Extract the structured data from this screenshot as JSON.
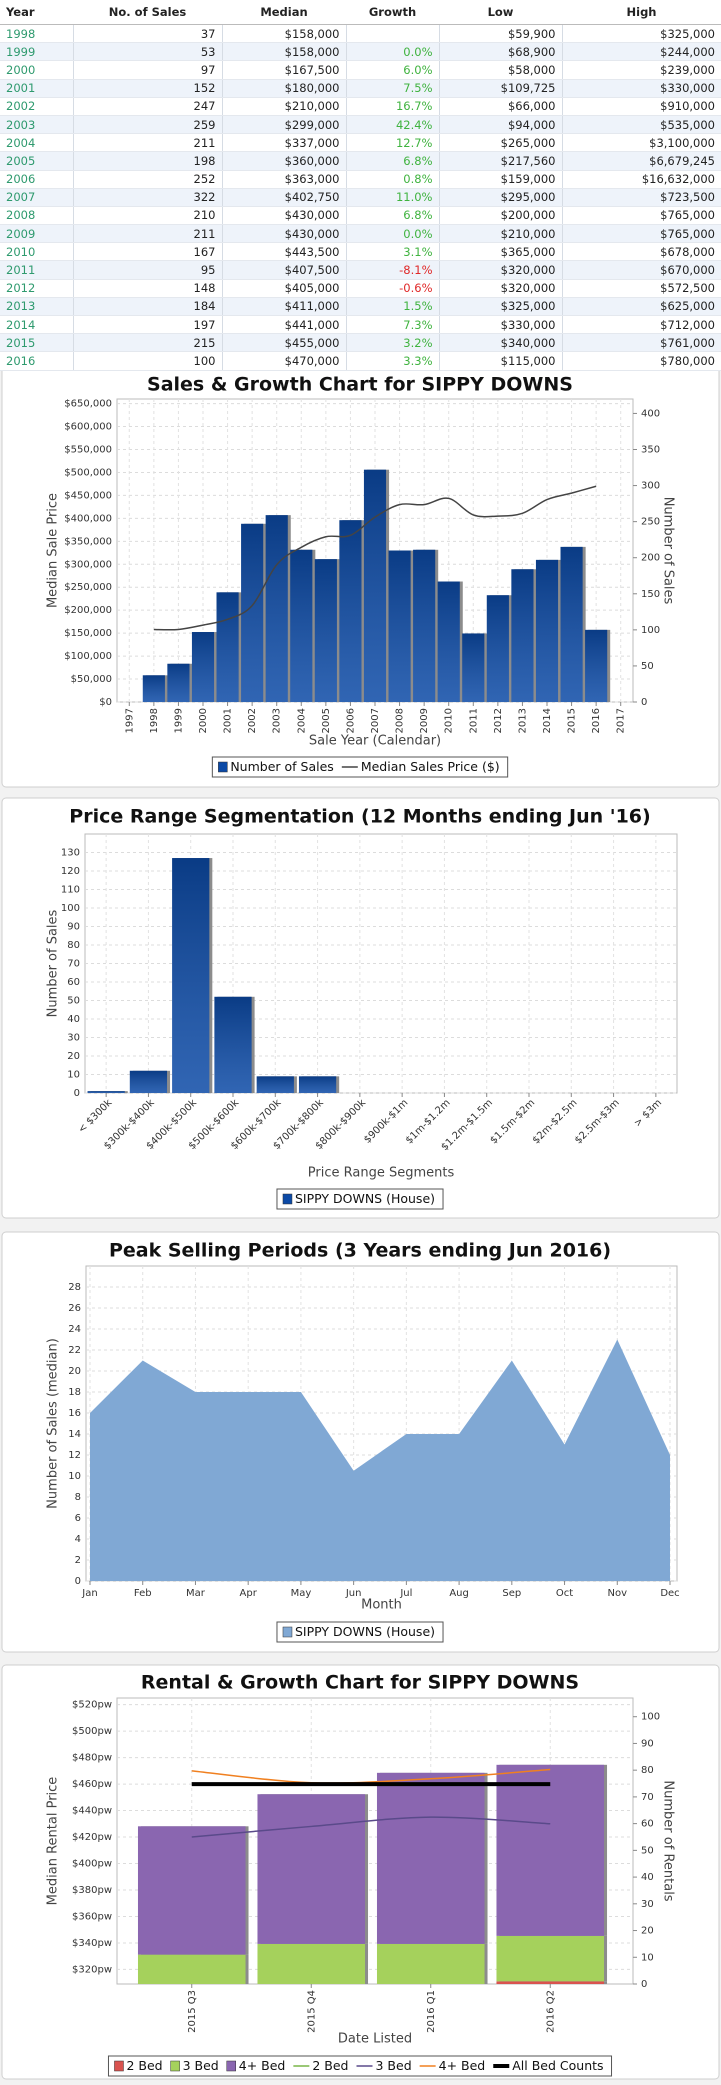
{
  "table": {
    "columns": [
      "Year",
      "No. of Sales",
      "Median",
      "Growth",
      "Low",
      "High"
    ],
    "rows": [
      [
        "1998",
        37,
        "$158,000",
        null,
        "$59,900",
        "$325,000"
      ],
      [
        "1999",
        53,
        "$158,000",
        "0.0%",
        "$68,900",
        "$244,000"
      ],
      [
        "2000",
        97,
        "$167,500",
        "6.0%",
        "$58,000",
        "$239,000"
      ],
      [
        "2001",
        152,
        "$180,000",
        "7.5%",
        "$109,725",
        "$330,000"
      ],
      [
        "2002",
        247,
        "$210,000",
        "16.7%",
        "$66,000",
        "$910,000"
      ],
      [
        "2003",
        259,
        "$299,000",
        "42.4%",
        "$94,000",
        "$535,000"
      ],
      [
        "2004",
        211,
        "$337,000",
        "12.7%",
        "$265,000",
        "$3,100,000"
      ],
      [
        "2005",
        198,
        "$360,000",
        "6.8%",
        "$217,560",
        "$6,679,245"
      ],
      [
        "2006",
        252,
        "$363,000",
        "0.8%",
        "$159,000",
        "$16,632,000"
      ],
      [
        "2007",
        322,
        "$402,750",
        "11.0%",
        "$295,000",
        "$723,500"
      ],
      [
        "2008",
        210,
        "$430,000",
        "6.8%",
        "$200,000",
        "$765,000"
      ],
      [
        "2009",
        211,
        "$430,000",
        "0.0%",
        "$210,000",
        "$765,000"
      ],
      [
        "2010",
        167,
        "$443,500",
        "3.1%",
        "$365,000",
        "$678,000"
      ],
      [
        "2011",
        95,
        "$407,500",
        "-8.1%",
        "$320,000",
        "$670,000"
      ],
      [
        "2012",
        148,
        "$405,000",
        "-0.6%",
        "$320,000",
        "$572,500"
      ],
      [
        "2013",
        184,
        "$411,000",
        "1.5%",
        "$325,000",
        "$625,000"
      ],
      [
        "2014",
        197,
        "$441,000",
        "7.3%",
        "$330,000",
        "$712,000"
      ],
      [
        "2015",
        215,
        "$455,000",
        "3.2%",
        "$340,000",
        "$761,000"
      ],
      [
        "2016",
        100,
        "$470,000",
        "3.3%",
        "$115,000",
        "$780,000"
      ]
    ]
  },
  "chart_data": [
    {
      "type": "combo",
      "title": "Sales & Growth Chart for SIPPY DOWNS",
      "x_label": "Sale Year (Calendar)",
      "y_label": "Median Sale Price",
      "y2_label": "Number of Sales",
      "categories": [
        "1997",
        "1998",
        "1999",
        "2000",
        "2001",
        "2002",
        "2003",
        "2004",
        "2005",
        "2006",
        "2007",
        "2008",
        "2009",
        "2010",
        "2011",
        "2012",
        "2013",
        "2014",
        "2015",
        "2016",
        "2017"
      ],
      "series": [
        {
          "name": "Number of Sales",
          "kind": "bar",
          "axis": "y2",
          "color": "#0c4aa6",
          "values": [
            null,
            37,
            53,
            97,
            152,
            247,
            259,
            211,
            198,
            252,
            322,
            210,
            211,
            167,
            95,
            148,
            184,
            197,
            215,
            100,
            null
          ]
        },
        {
          "name": "Median Sales Price ($)",
          "kind": "line",
          "color": "#444444",
          "values": [
            null,
            158000,
            158000,
            167500,
            180000,
            210000,
            299000,
            337000,
            360000,
            363000,
            402750,
            430000,
            430000,
            443500,
            407500,
            405000,
            411000,
            441000,
            455000,
            470000,
            null
          ]
        }
      ],
      "ylim": [
        0,
        660000
      ],
      "yticks": [
        {
          "value": 0,
          "label": "$0"
        },
        {
          "value": 50000,
          "label": "$50,000"
        },
        {
          "value": 100000,
          "label": "$100,000"
        },
        {
          "value": 150000,
          "label": "$150,000"
        },
        {
          "value": 200000,
          "label": "$200,000"
        },
        {
          "value": 250000,
          "label": "$250,000"
        },
        {
          "value": 300000,
          "label": "$300,000"
        },
        {
          "value": 350000,
          "label": "$350,000"
        },
        {
          "value": 400000,
          "label": "$400,000"
        },
        {
          "value": 450000,
          "label": "$450,000"
        },
        {
          "value": 500000,
          "label": "$500,000"
        },
        {
          "value": 550000,
          "label": "$550,000"
        },
        {
          "value": 600000,
          "label": "$600,000"
        },
        {
          "value": 650000,
          "label": "$650,000"
        }
      ],
      "y2lim": [
        0,
        420
      ],
      "y2ticks": [
        0,
        50,
        100,
        150,
        200,
        250,
        300,
        350,
        400
      ],
      "grid": true,
      "smooth": true,
      "legend": "bottom"
    },
    {
      "type": "bar",
      "title": "Price Range Segmentation (12 Months ending Jun '16)",
      "x_label": "Price Range Segments",
      "y_label": "Number of Sales",
      "categories": [
        "< $300k",
        "$300k-$400k",
        "$400k-$500k",
        "$500k-$600k",
        "$600k-$700k",
        "$700k-$800k",
        "$800k-$900k",
        "$900k-$1m",
        "$1m-$1.2m",
        "$1.2m-$1.5m",
        "$1.5m-$2m",
        "$2m-$2.5m",
        "$2.5m-$3m",
        "> $3m"
      ],
      "series": [
        {
          "name": "SIPPY DOWNS (House)",
          "kind": "bar",
          "color": "#0c4aa6",
          "values": [
            1,
            12,
            127,
            52,
            9,
            9,
            0,
            0,
            0,
            0,
            0,
            0,
            0,
            0
          ]
        }
      ],
      "ylim": [
        0,
        140
      ],
      "yticks": [
        0,
        10,
        20,
        30,
        40,
        50,
        60,
        70,
        80,
        90,
        100,
        110,
        120,
        130
      ],
      "grid": true,
      "legend": "bottom"
    },
    {
      "type": "area",
      "title": "Peak Selling Periods (3 Years ending Jun 2016)",
      "x_label": "Month",
      "y_label": "Number of Sales (median)",
      "categories": [
        "Jan",
        "Feb",
        "Mar",
        "Apr",
        "May",
        "Jun",
        "Jul",
        "Aug",
        "Sep",
        "Oct",
        "Nov",
        "Dec"
      ],
      "series": [
        {
          "name": "SIPPY DOWNS (House)",
          "kind": "area",
          "color": "#80a8d4",
          "values": [
            16,
            21,
            18,
            18,
            18,
            10.5,
            14,
            14,
            21,
            13,
            23,
            12
          ]
        }
      ],
      "ylim": [
        0,
        30
      ],
      "yticks": [
        0,
        2,
        4,
        6,
        8,
        10,
        12,
        14,
        16,
        18,
        20,
        22,
        24,
        26,
        28
      ],
      "grid": true,
      "legend": "bottom"
    },
    {
      "type": "combo",
      "title": "Rental & Growth Chart for SIPPY DOWNS",
      "x_label": "Date Listed",
      "y_label": "Median Rental Price",
      "y2_label": "Number of Rentals",
      "categories": [
        "2015 Q3",
        "2015 Q4",
        "2016 Q1",
        "2016 Q2"
      ],
      "stacked": true,
      "series": [
        {
          "name": "2 Bed",
          "kind": "bar",
          "axis": "y2",
          "color": "#d9534f",
          "values": [
            0,
            0,
            0,
            1
          ]
        },
        {
          "name": "3 Bed",
          "kind": "bar",
          "axis": "y2",
          "color": "#a5d15c",
          "values": [
            11,
            15,
            15,
            17
          ]
        },
        {
          "name": "4+ Bed",
          "kind": "bar",
          "axis": "y2",
          "color": "#8a66b0",
          "values": [
            48,
            56,
            64,
            64
          ]
        },
        {
          "name": "2 Bed",
          "kind": "line",
          "color": "#7ab648",
          "values": [
            null,
            null,
            null,
            null
          ]
        },
        {
          "name": "3 Bed",
          "kind": "line",
          "color": "#5a4a8a",
          "values": [
            420,
            428,
            435,
            430
          ]
        },
        {
          "name": "4+ Bed",
          "kind": "line",
          "color": "#f08020",
          "values": [
            470,
            461,
            464,
            471
          ]
        },
        {
          "name": "All Bed Counts",
          "kind": "line",
          "color": "#000000",
          "values": [
            460,
            460,
            460,
            460
          ]
        }
      ],
      "ylim": [
        309,
        525
      ],
      "yticks": [
        {
          "value": 320,
          "label": "$320pw"
        },
        {
          "value": 340,
          "label": "$340pw"
        },
        {
          "value": 360,
          "label": "$360pw"
        },
        {
          "value": 380,
          "label": "$380pw"
        },
        {
          "value": 400,
          "label": "$400pw"
        },
        {
          "value": 420,
          "label": "$420pw"
        },
        {
          "value": 440,
          "label": "$440pw"
        },
        {
          "value": 460,
          "label": "$460pw"
        },
        {
          "value": 480,
          "label": "$480pw"
        },
        {
          "value": 500,
          "label": "$500pw"
        },
        {
          "value": 520,
          "label": "$520pw"
        }
      ],
      "y2lim": [
        0,
        107
      ],
      "y2ticks": [
        0,
        10,
        20,
        30,
        40,
        50,
        60,
        70,
        80,
        90,
        100
      ],
      "grid": true,
      "smooth": true,
      "legend": "bottom"
    }
  ]
}
